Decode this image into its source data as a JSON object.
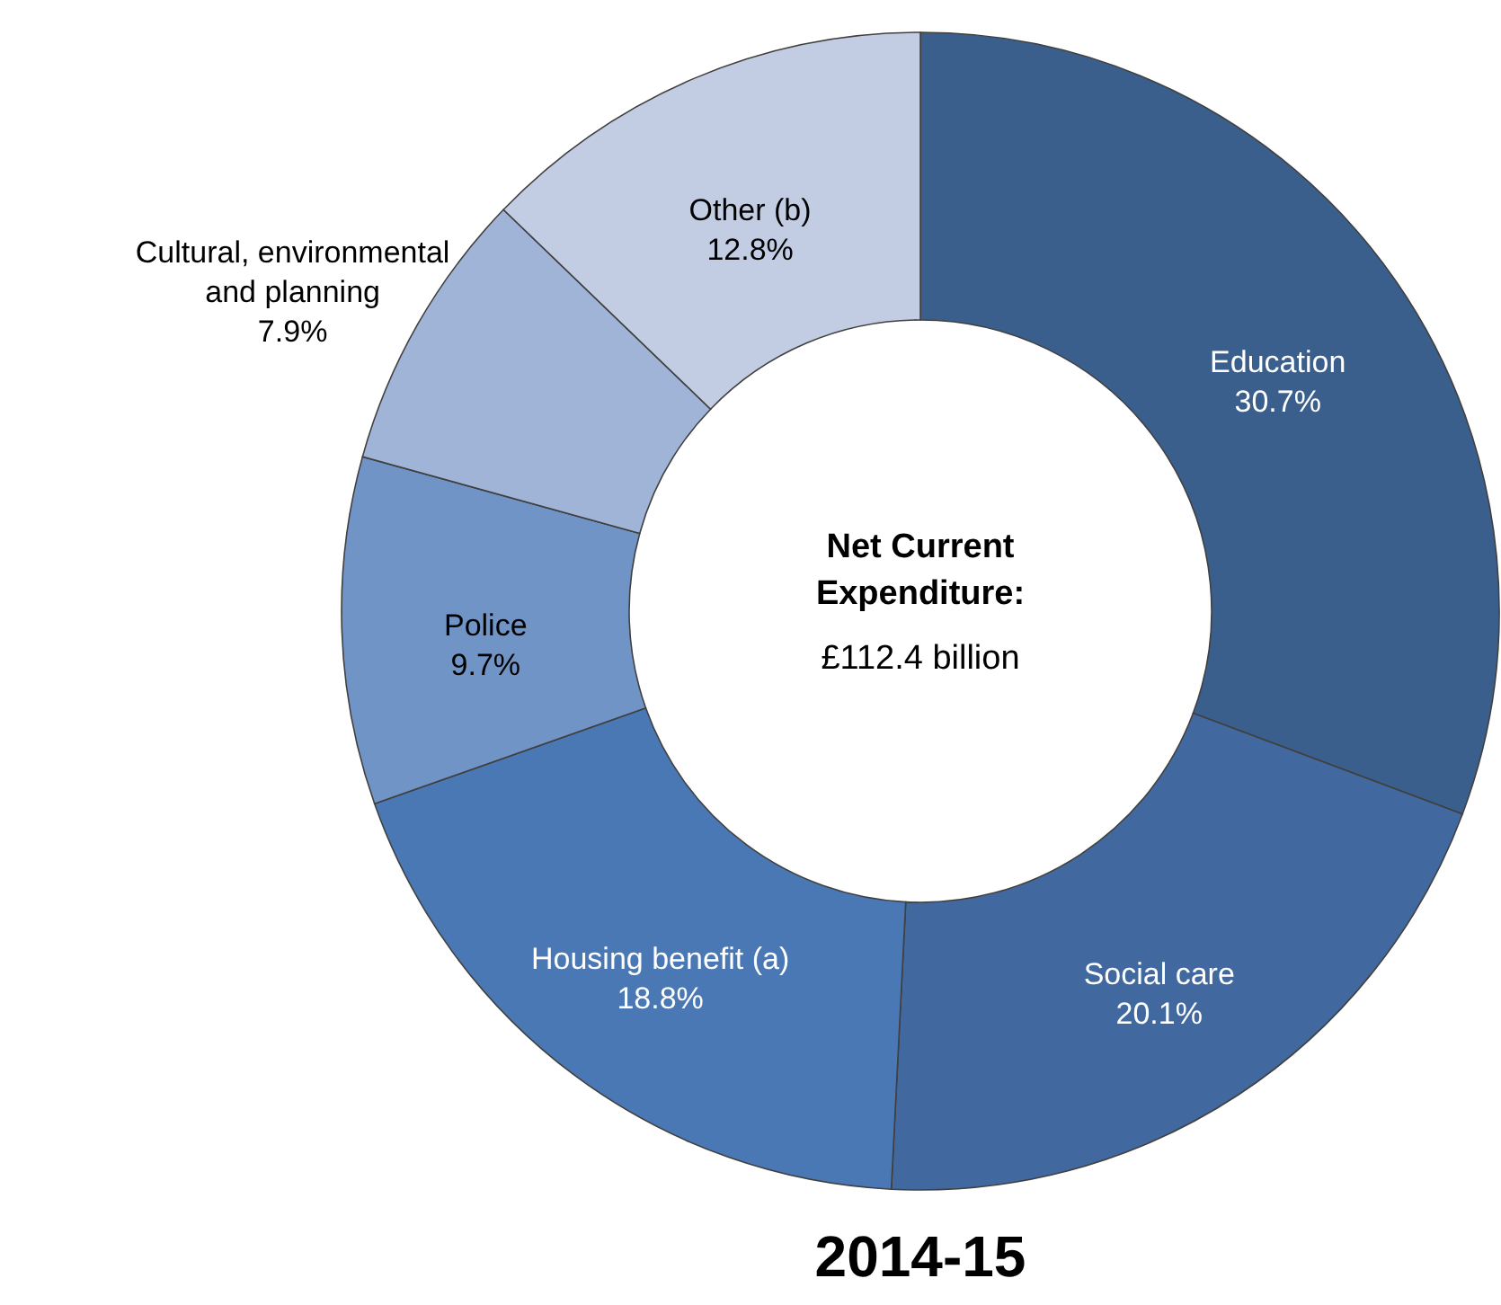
{
  "chart_data": {
    "type": "donut",
    "title": "2014-15",
    "categories": [
      "Education",
      "Social care",
      "Housing benefit (a)",
      "Police",
      "Cultural, environmental and planning",
      "Other (b)"
    ],
    "values": [
      30.7,
      20.1,
      18.8,
      9.7,
      7.9,
      12.8
    ],
    "value_labels": [
      "30.7%",
      "20.1%",
      "18.8%",
      "9.7%",
      "7.9%",
      "12.8%"
    ],
    "colors": [
      "#3a5f8d",
      "#41699f",
      "#4a78b4",
      "#7094c6",
      "#a0b4d7",
      "#c2cde3"
    ],
    "annotations": [
      "Net Current Expenditure:",
      "£112.4 billion"
    ]
  }
}
